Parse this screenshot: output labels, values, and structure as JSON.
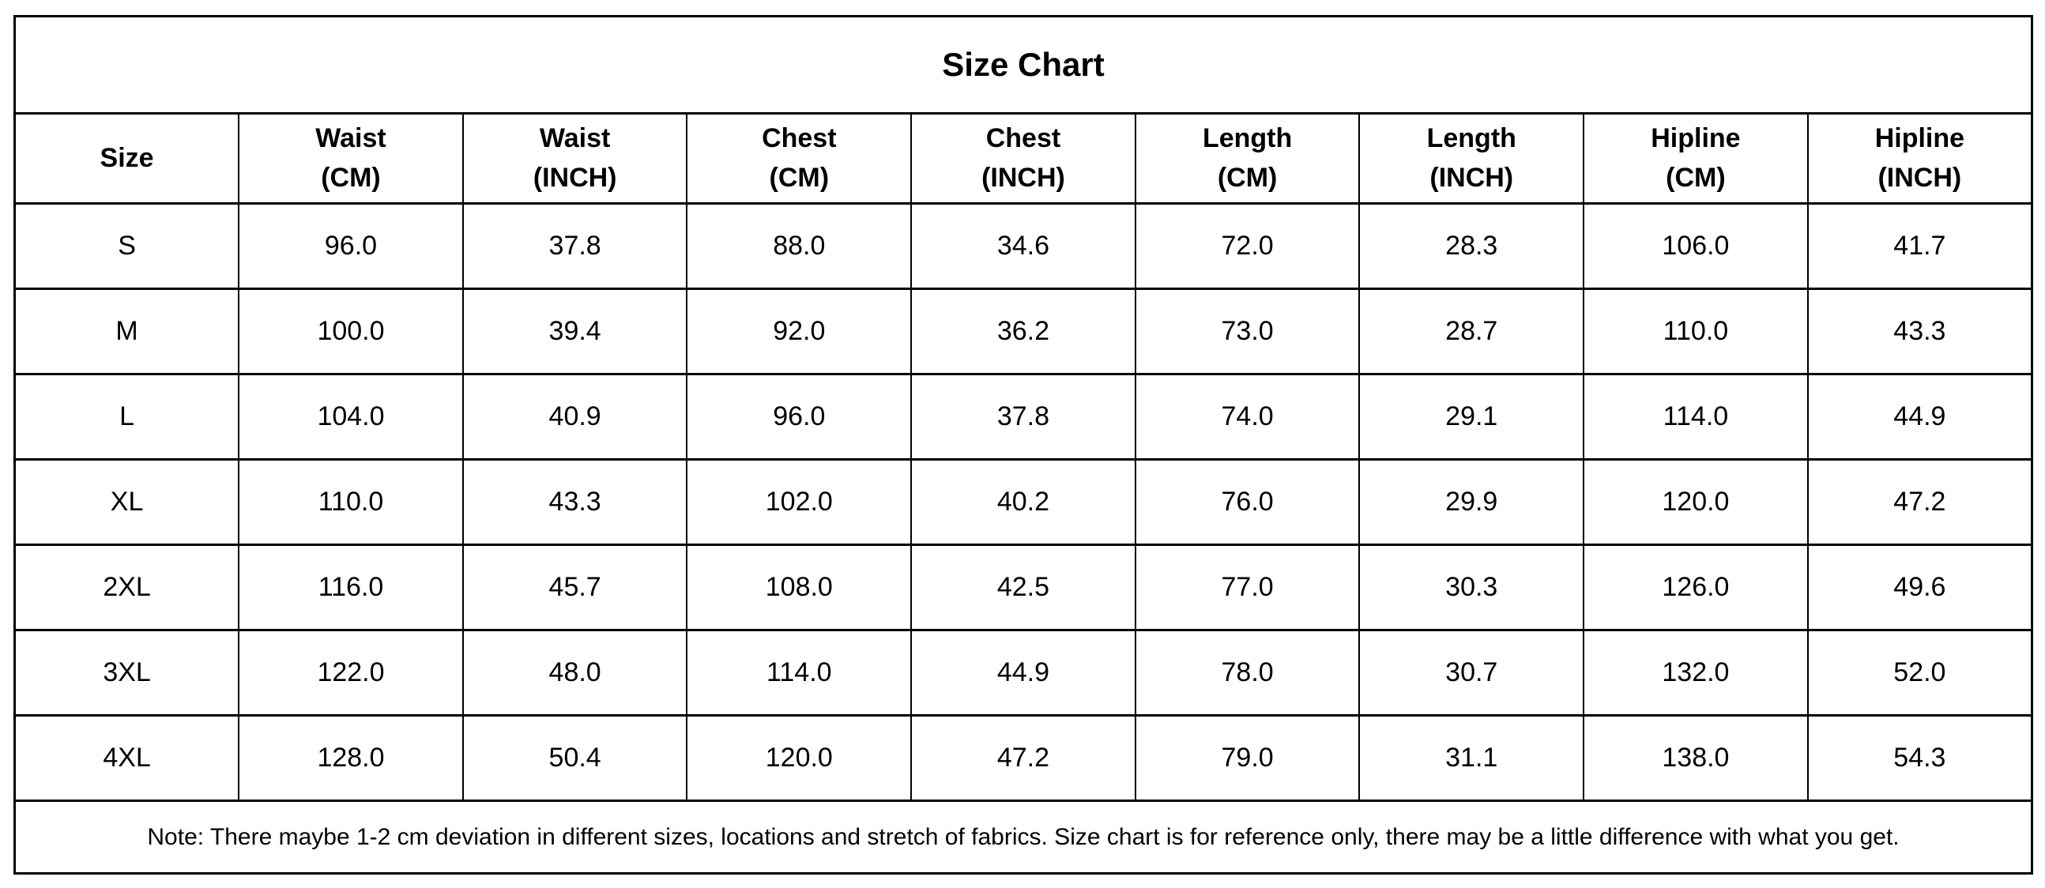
{
  "chart_data": {
    "type": "table",
    "title": "Size Chart",
    "columns": [
      {
        "key": "size",
        "label": "Size",
        "unit": ""
      },
      {
        "key": "waist-cm",
        "label": "Waist",
        "unit": "(CM)"
      },
      {
        "key": "waist-inch",
        "label": "Waist",
        "unit": "(INCH)"
      },
      {
        "key": "chest-cm",
        "label": "Chest",
        "unit": "(CM)"
      },
      {
        "key": "chest-inch",
        "label": "Chest",
        "unit": "(INCH)"
      },
      {
        "key": "length-cm",
        "label": "Length",
        "unit": "(CM)"
      },
      {
        "key": "length-inch",
        "label": "Length",
        "unit": "(INCH)"
      },
      {
        "key": "hipline-cm",
        "label": "Hipline",
        "unit": "(CM)"
      },
      {
        "key": "hipline-inch",
        "label": "Hipline",
        "unit": "(INCH)"
      }
    ],
    "rows": [
      {
        "size": "S",
        "values": [
          "96.0",
          "37.8",
          "88.0",
          "34.6",
          "72.0",
          "28.3",
          "106.0",
          "41.7"
        ]
      },
      {
        "size": "M",
        "values": [
          "100.0",
          "39.4",
          "92.0",
          "36.2",
          "73.0",
          "28.7",
          "110.0",
          "43.3"
        ]
      },
      {
        "size": "L",
        "values": [
          "104.0",
          "40.9",
          "96.0",
          "37.8",
          "74.0",
          "29.1",
          "114.0",
          "44.9"
        ]
      },
      {
        "size": "XL",
        "values": [
          "110.0",
          "43.3",
          "102.0",
          "40.2",
          "76.0",
          "29.9",
          "120.0",
          "47.2"
        ]
      },
      {
        "size": "2XL",
        "values": [
          "116.0",
          "45.7",
          "108.0",
          "42.5",
          "77.0",
          "30.3",
          "126.0",
          "49.6"
        ]
      },
      {
        "size": "3XL",
        "values": [
          "122.0",
          "48.0",
          "114.0",
          "44.9",
          "78.0",
          "30.7",
          "132.0",
          "52.0"
        ]
      },
      {
        "size": "4XL",
        "values": [
          "128.0",
          "50.4",
          "120.0",
          "47.2",
          "79.0",
          "31.1",
          "138.0",
          "54.3"
        ]
      }
    ],
    "note": "Note: There maybe 1-2 cm deviation in different sizes, locations and stretch of fabrics. Size chart is for reference only, there may be a little difference with what you get.",
    "layout": {
      "grid": "on",
      "colors": {
        "border": "#000000",
        "background": "#ffffff",
        "text": "#000000"
      }
    }
  }
}
